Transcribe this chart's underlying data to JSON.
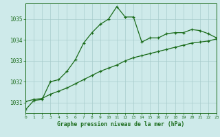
{
  "title": "Graphe pression niveau de la mer (hPa)",
  "background_color": "#ceeaea",
  "grid_color": "#a8cccc",
  "line_color": "#1a6b1a",
  "x_min": 0,
  "x_max": 23,
  "y_min": 1030.5,
  "y_max": 1035.75,
  "yticks": [
    1031,
    1032,
    1033,
    1034,
    1035
  ],
  "xticks": [
    0,
    1,
    2,
    3,
    4,
    5,
    6,
    7,
    8,
    9,
    10,
    11,
    12,
    13,
    14,
    15,
    16,
    17,
    18,
    19,
    20,
    21,
    22,
    23
  ],
  "series1_x": [
    0,
    1,
    2,
    3,
    4,
    5,
    6,
    7,
    8,
    9,
    10,
    11,
    12,
    13,
    14,
    15,
    16,
    17,
    18,
    19,
    20,
    21,
    22,
    23
  ],
  "series1_y": [
    1030.65,
    1031.1,
    1031.15,
    1032.0,
    1032.1,
    1032.5,
    1033.05,
    1033.85,
    1034.35,
    1034.75,
    1035.0,
    1035.6,
    1035.1,
    1035.1,
    1033.9,
    1034.1,
    1034.1,
    1034.3,
    1034.35,
    1034.35,
    1034.5,
    1034.45,
    1034.3,
    1034.1
  ],
  "series2_x": [
    0,
    1,
    2,
    3,
    4,
    5,
    6,
    7,
    8,
    9,
    10,
    11,
    12,
    13,
    14,
    15,
    16,
    17,
    18,
    19,
    20,
    21,
    22,
    23
  ],
  "series2_y": [
    1031.05,
    1031.15,
    1031.2,
    1031.4,
    1031.55,
    1031.7,
    1031.9,
    1032.1,
    1032.3,
    1032.5,
    1032.65,
    1032.8,
    1033.0,
    1033.15,
    1033.25,
    1033.35,
    1033.45,
    1033.55,
    1033.65,
    1033.75,
    1033.85,
    1033.9,
    1033.95,
    1034.05
  ]
}
